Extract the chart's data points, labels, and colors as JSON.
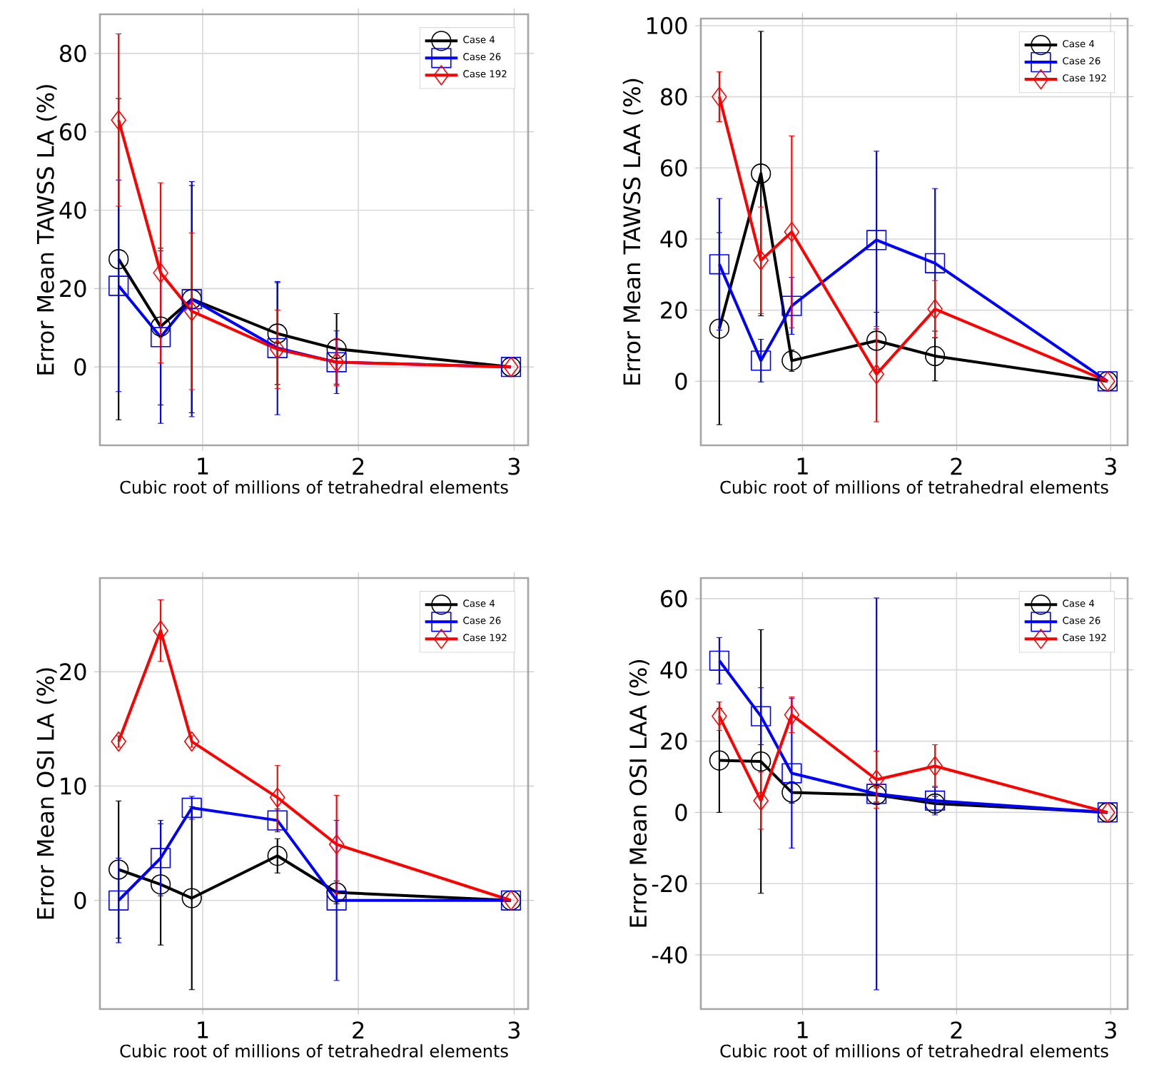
{
  "chart_data": [
    {
      "type": "line",
      "xlabel": "Cubic root of millions of tetrahedral elements",
      "ylabel": "Error Mean TAWSS LA (%)",
      "x": [
        0.46,
        0.73,
        0.93,
        1.48,
        1.86,
        2.98
      ],
      "xlim": [
        0.34,
        3.09
      ],
      "xticks": [
        1,
        2,
        3
      ],
      "ylim": [
        -20,
        90
      ],
      "yticks": [
        0,
        20,
        40,
        60,
        80
      ],
      "grid": true,
      "legend": "top right",
      "series": [
        {
          "name": "Case 4",
          "color": "#000000",
          "marker": "circle",
          "values": [
            27.5,
            10.3,
            17.3,
            8.5,
            4.6,
            0
          ],
          "errors": [
            41,
            20,
            29,
            13,
            9,
            null
          ]
        },
        {
          "name": "Case 26",
          "color": "#0000ff",
          "marker": "square",
          "values": [
            20.7,
            7.6,
            17.3,
            4.8,
            1.2,
            0
          ],
          "errors": [
            27,
            22,
            30,
            17,
            8,
            null
          ]
        },
        {
          "name": "Case 192",
          "color": "#ff0000",
          "marker": "diamond",
          "values": [
            63,
            24,
            14.2,
            4.5,
            1.2,
            0
          ],
          "errors": [
            22,
            23,
            20,
            10,
            6,
            null
          ]
        }
      ]
    },
    {
      "type": "line",
      "xlabel": "Cubic root of millions of tetrahedral elements",
      "ylabel": "Error Mean TAWSS LAA (%)",
      "x": [
        0.46,
        0.73,
        0.93,
        1.48,
        1.86,
        2.98
      ],
      "xlim": [
        0.34,
        3.11
      ],
      "xticks": [
        1,
        2,
        3
      ],
      "ylim": [
        -18,
        102
      ],
      "yticks": [
        0,
        20,
        40,
        60,
        80,
        100
      ],
      "grid": true,
      "legend": "top right",
      "series": [
        {
          "name": "Case 4",
          "color": "#000000",
          "marker": "circle",
          "values": [
            14.8,
            58.4,
            5.8,
            11.4,
            7.1,
            0
          ],
          "errors": [
            27,
            40,
            3,
            8,
            7,
            null
          ]
        },
        {
          "name": "Case 26",
          "color": "#0000ff",
          "marker": "square",
          "values": [
            32.9,
            5.8,
            21.2,
            39.7,
            33.2,
            0
          ],
          "errors": [
            18.5,
            6,
            8,
            25,
            21,
            null
          ]
        },
        {
          "name": "Case 192",
          "color": "#ff0000",
          "marker": "diamond",
          "values": [
            80,
            34,
            42,
            2,
            20.3,
            0
          ],
          "errors": [
            7,
            15,
            27,
            13.4,
            8,
            null
          ]
        }
      ]
    },
    {
      "type": "line",
      "xlabel": "Cubic root of millions of tetrahedral elements",
      "ylabel": "Error Mean OSI LA (%)",
      "x": [
        0.46,
        0.73,
        0.93,
        1.48,
        1.86,
        2.98
      ],
      "xlim": [
        0.34,
        3.09
      ],
      "xticks": [
        1,
        2,
        3
      ],
      "ylim": [
        -9.5,
        28.2
      ],
      "yticks": [
        0,
        10,
        20
      ],
      "grid": true,
      "legend": "top right",
      "series": [
        {
          "name": "Case 4",
          "color": "#000000",
          "marker": "circle",
          "values": [
            2.7,
            1.4,
            0.2,
            3.9,
            0.7,
            0
          ],
          "errors": [
            6,
            5.3,
            8,
            1.5,
            1,
            null
          ]
        },
        {
          "name": "Case 26",
          "color": "#0000ff",
          "marker": "square",
          "values": [
            0,
            3.7,
            8.1,
            7,
            0,
            0
          ],
          "errors": [
            3.7,
            3.3,
            1,
            1,
            7,
            null
          ]
        },
        {
          "name": "Case 192",
          "color": "#ff0000",
          "marker": "diamond",
          "values": [
            13.9,
            23.6,
            13.9,
            9,
            4.9,
            0
          ],
          "errors": [
            0.5,
            2.7,
            0.5,
            2.8,
            4.3,
            null
          ]
        }
      ]
    },
    {
      "type": "line",
      "xlabel": "Cubic root of millions of tetrahedral elements",
      "ylabel": "Error Mean OSI LAA (%)",
      "x": [
        0.46,
        0.73,
        0.93,
        1.48,
        1.86,
        2.98
      ],
      "xlim": [
        0.34,
        3.11
      ],
      "xticks": [
        1,
        2,
        3
      ],
      "ylim": [
        -55.2,
        65.8
      ],
      "yticks": [
        -40,
        -20,
        0,
        20,
        40,
        60
      ],
      "grid": true,
      "legend": "top right",
      "series": [
        {
          "name": "Case 4",
          "color": "#000000",
          "marker": "circle",
          "values": [
            14.6,
            14.3,
            5.6,
            4.9,
            2.5,
            0
          ],
          "errors": [
            14.6,
            37,
            3,
            2,
            2,
            null
          ]
        },
        {
          "name": "Case 26",
          "color": "#0000ff",
          "marker": "square",
          "values": [
            42.6,
            27,
            11,
            5.2,
            3.3,
            0
          ],
          "errors": [
            6.5,
            8,
            21,
            55,
            4,
            null
          ]
        },
        {
          "name": "Case 192",
          "color": "#ff0000",
          "marker": "diamond",
          "values": [
            27,
            3.3,
            27.4,
            9.2,
            13,
            0
          ],
          "errors": [
            4,
            8,
            5,
            8,
            6,
            null
          ]
        }
      ]
    }
  ]
}
